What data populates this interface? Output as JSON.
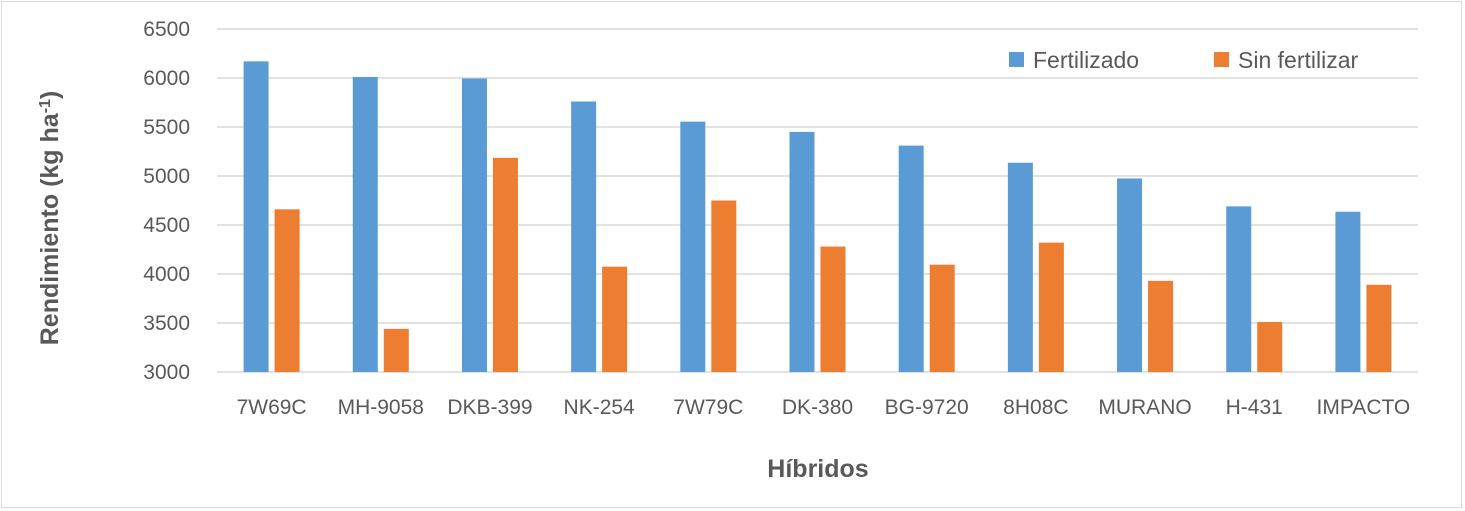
{
  "chart_data": {
    "type": "bar",
    "xlabel": "Híbridos",
    "ylabel_main": "Rendimiento (kg ha",
    "ylabel_sup": "-1",
    "ylabel_end": ")",
    "categories": [
      "7W69C",
      "MH-9058",
      "DKB-399",
      "NK-254",
      "7W79C",
      "DK-380",
      "BG-9720",
      "8H08C",
      "MURANO",
      "H-431",
      "IMPACTO"
    ],
    "series": [
      {
        "name": "Fertilizado",
        "color": "#5B9BD5",
        "values": [
          6170,
          6010,
          5995,
          5760,
          5555,
          5450,
          5310,
          5135,
          4975,
          4690,
          4635
        ]
      },
      {
        "name": "Sin fertilizar",
        "color": "#ED7D31",
        "values": [
          4660,
          3440,
          5185,
          4075,
          4750,
          4280,
          4095,
          4320,
          3930,
          3510,
          3890
        ]
      }
    ],
    "ylim": [
      3000,
      6500
    ],
    "yticks": [
      3000,
      3500,
      4000,
      4500,
      5000,
      5500,
      6000,
      6500
    ],
    "grid": true,
    "legend_position": "top-right"
  }
}
